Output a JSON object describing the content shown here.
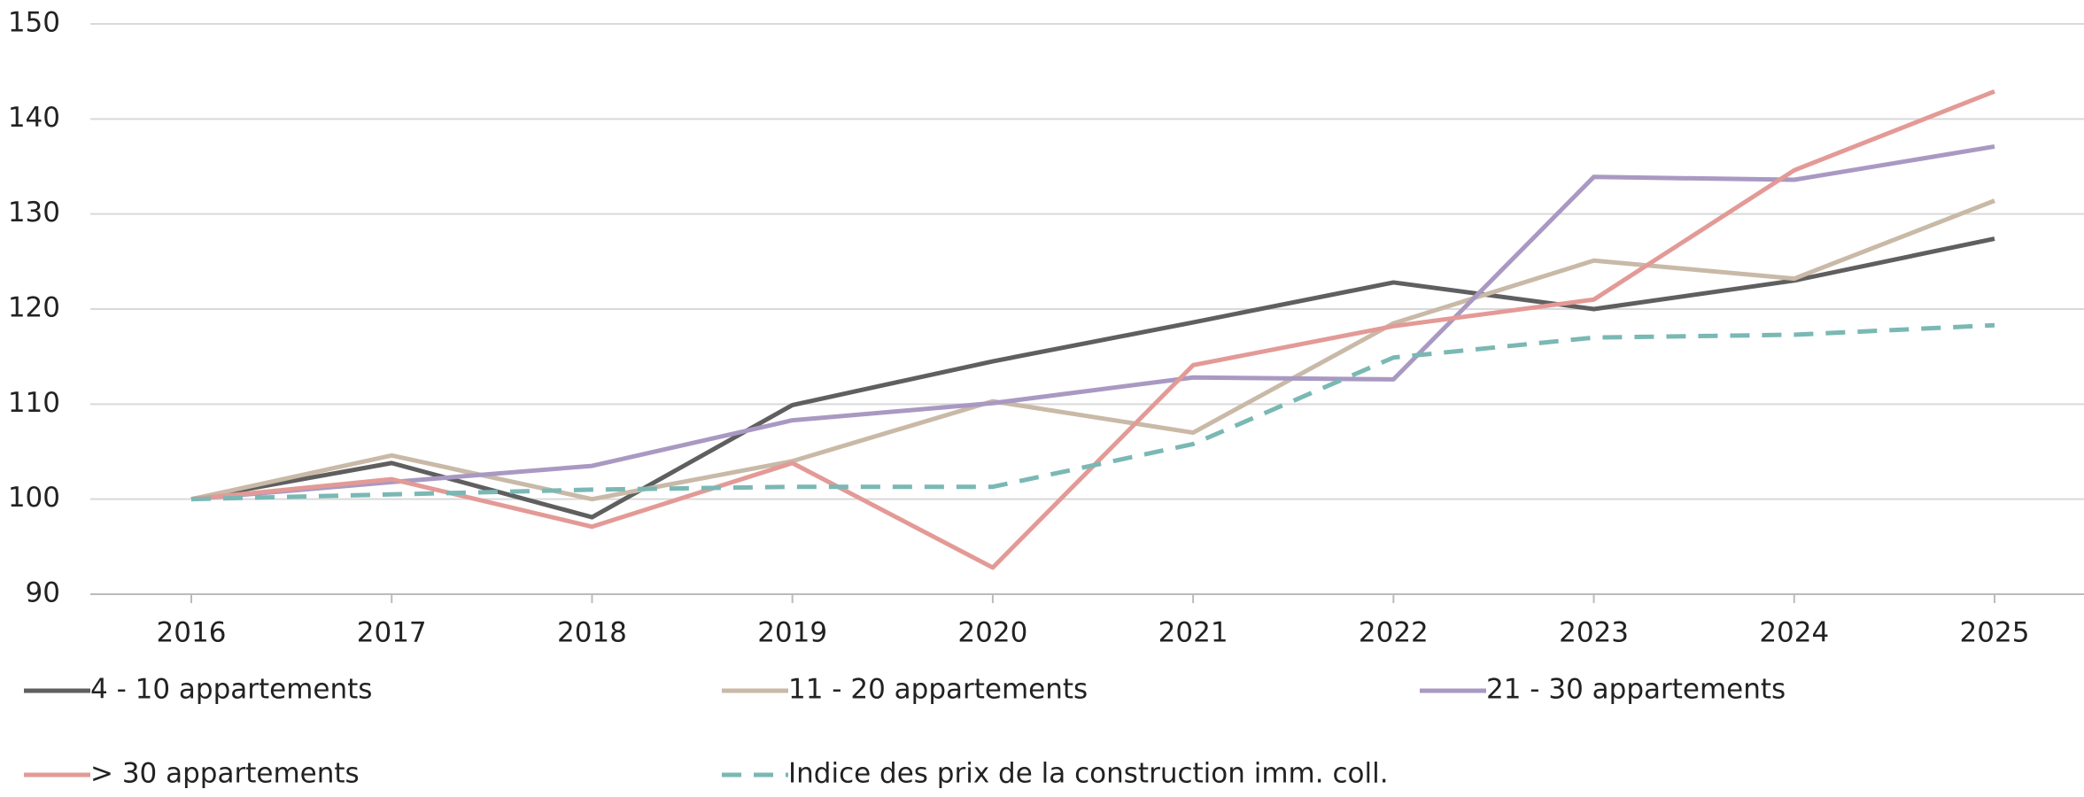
{
  "chart_data": {
    "type": "line",
    "categories": [
      "2016",
      "2017",
      "2018",
      "2019",
      "2020",
      "2021",
      "2022",
      "2023",
      "2024",
      "2025"
    ],
    "ylim": [
      90,
      150
    ],
    "yticks": [
      90,
      100,
      110,
      120,
      130,
      140,
      150
    ],
    "grid": true,
    "series": [
      {
        "name": "4 - 10 appartements",
        "color": "#5f5f5f",
        "line_style": "solid",
        "values": [
          100,
          103.8,
          98.1,
          109.9,
          114.5,
          118.6,
          122.8,
          120,
          123,
          127.4
        ]
      },
      {
        "name": "11 - 20 appartements",
        "color": "#c9b9a7",
        "line_style": "solid",
        "values": [
          100,
          104.6,
          100,
          104,
          110.3,
          107,
          118.5,
          125.1,
          123.2,
          131.4
        ]
      },
      {
        "name": "21 - 30 appartements",
        "color": "#a999c2",
        "line_style": "solid",
        "values": [
          100,
          101.8,
          103.5,
          108.3,
          110.1,
          112.8,
          112.6,
          133.9,
          133.6,
          137.1
        ]
      },
      {
        "name": "> 30 appartements",
        "color": "#e39a96",
        "line_style": "solid",
        "values": [
          100,
          102.1,
          97.1,
          103.8,
          92.8,
          114.1,
          118.2,
          121,
          134.6,
          142.9
        ]
      },
      {
        "name": "Indice des prix de la construction imm. coll.",
        "color": "#7ab8b4",
        "line_style": "dashed",
        "values": [
          100,
          100.5,
          101,
          101.3,
          101.3,
          105.8,
          114.9,
          117,
          117.3,
          118.3
        ]
      }
    ]
  }
}
